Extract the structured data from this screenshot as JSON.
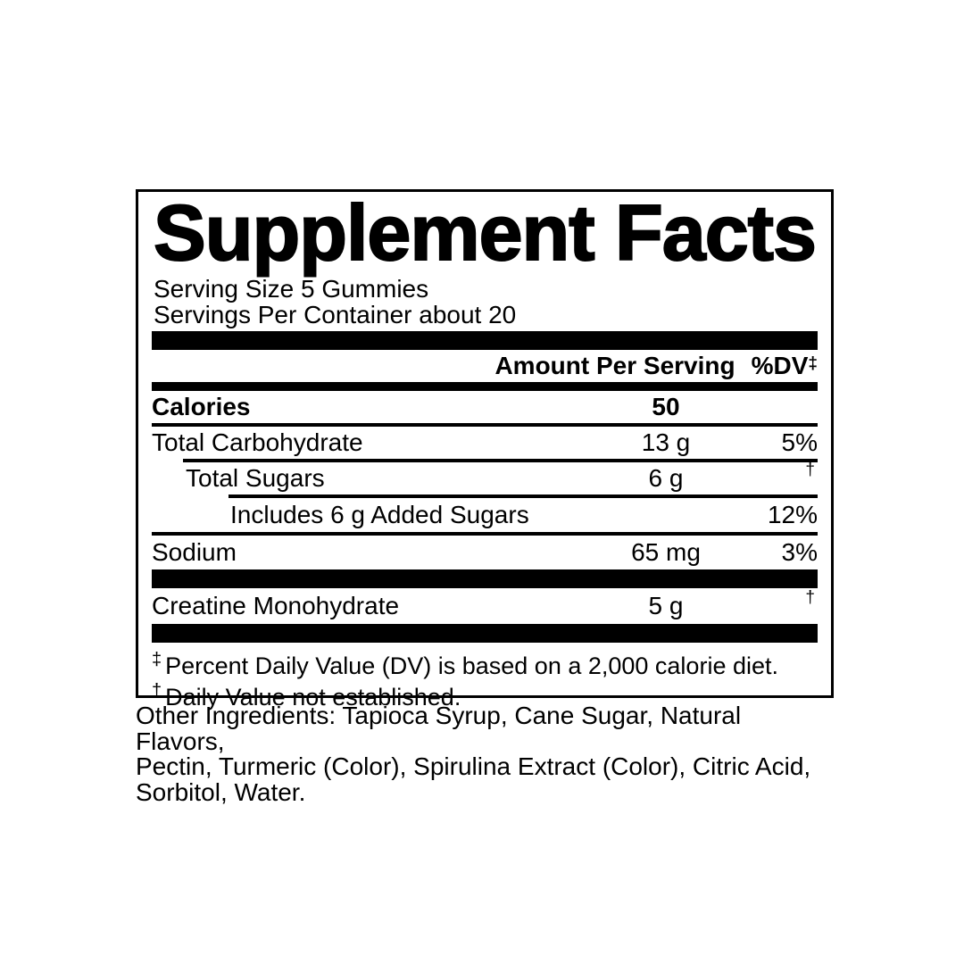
{
  "label": {
    "title": "Supplement Facts",
    "serving_size": "Serving Size 5 Gummies",
    "servings_per_container": "Servings Per Container about 20",
    "column_header": {
      "amount": "Amount Per Serving",
      "dv": "%DV",
      "dv_symbol": "‡"
    },
    "rows": [
      {
        "name": "Calories",
        "amount": "50",
        "dv": ""
      },
      {
        "name": "Total Carbohydrate",
        "amount": "13 g",
        "dv": "5%"
      },
      {
        "name": "Total Sugars",
        "amount": "6 g",
        "dv": "†"
      },
      {
        "name": "Includes 6 g Added Sugars",
        "amount": "",
        "dv": "12%"
      },
      {
        "name": "Sodium",
        "amount": "65 mg",
        "dv": "3%"
      },
      {
        "name": "Creatine Monohydrate",
        "amount": "5 g",
        "dv": "†"
      }
    ],
    "footnotes": [
      {
        "symbol": "‡",
        "text": "Percent Daily Value (DV) is based on a 2,000 calorie diet."
      },
      {
        "symbol": "†",
        "text": "Daily Value not established."
      }
    ]
  },
  "other_ingredients_lines": [
    "Other Ingredients: Tapioca Syrup, Cane Sugar, Natural Flavors,",
    "Pectin, Turmeric (Color), Spirulina Extract (Color), Citric Acid,",
    "Sorbitol, Water."
  ],
  "colors": {
    "ink": "#000000",
    "background": "#ffffff"
  }
}
